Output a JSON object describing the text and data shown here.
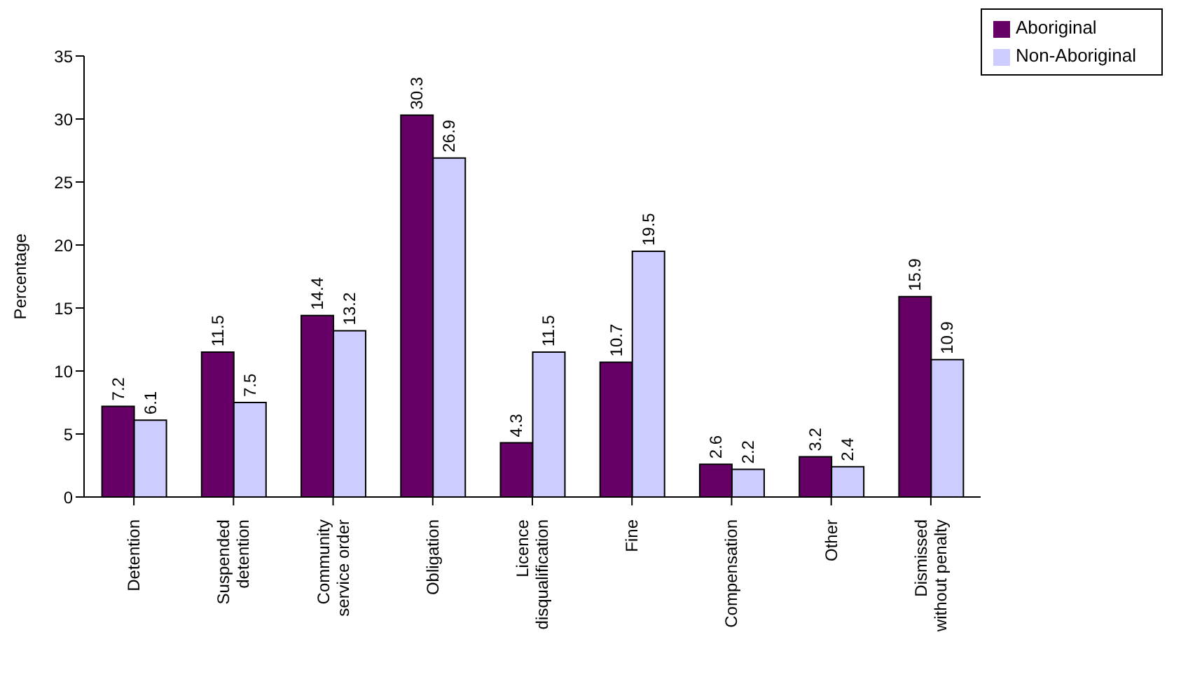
{
  "chart_data": {
    "type": "bar",
    "ylabel": "Percentage",
    "categories": [
      "Detention",
      "Suspended detention",
      "Community service order",
      "Obligation",
      "Licence disqualification",
      "Fine",
      "Compensation",
      "Other",
      "Dismissed without penalty"
    ],
    "series": [
      {
        "name": "Aboriginal",
        "color": "#660066",
        "values": [
          7.2,
          11.5,
          14.4,
          30.3,
          4.3,
          10.7,
          2.6,
          3.2,
          15.9
        ]
      },
      {
        "name": "Non-Aboriginal",
        "color": "#ccccff",
        "values": [
          6.1,
          7.5,
          13.2,
          26.9,
          11.5,
          19.5,
          2.2,
          2.4,
          10.9
        ]
      }
    ],
    "ylim": [
      0,
      35
    ],
    "yticks": [
      0,
      5,
      10,
      15,
      20,
      25,
      30,
      35
    ],
    "grid": false,
    "legend": "top right",
    "data_labels": true
  }
}
